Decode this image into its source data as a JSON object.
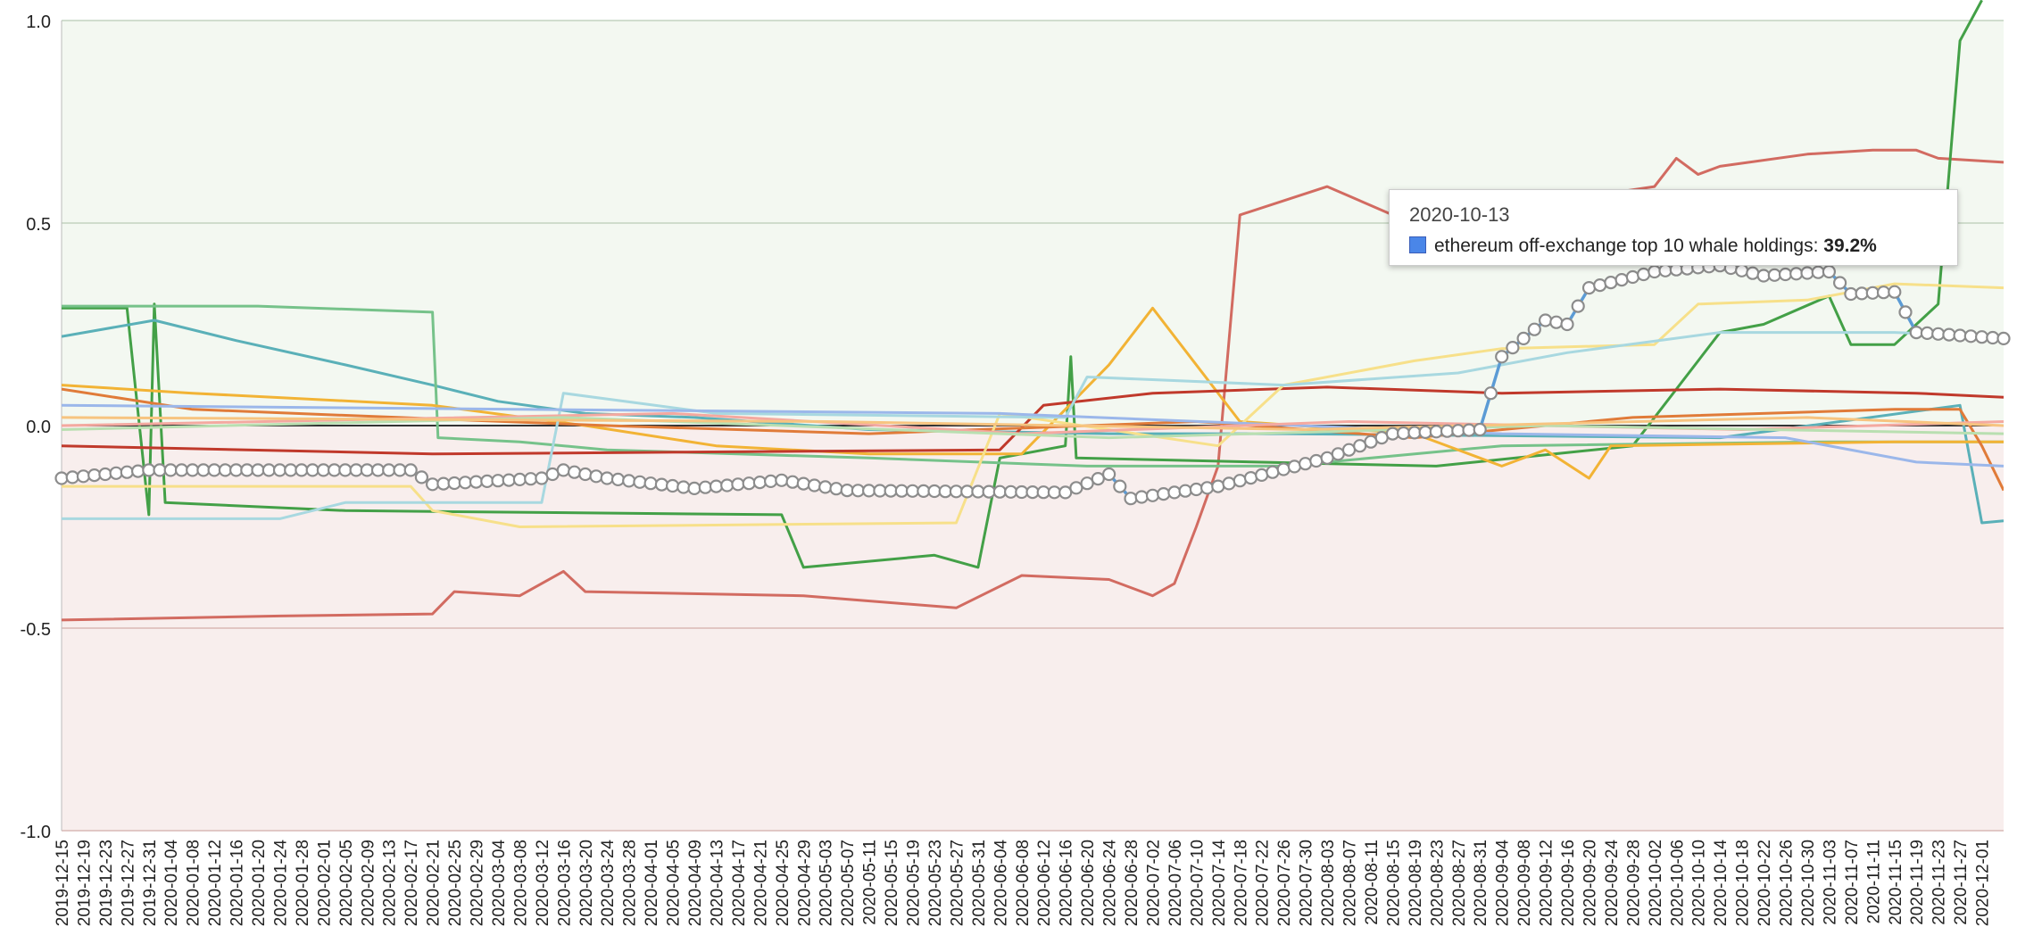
{
  "chart_data": {
    "type": "line",
    "title": "",
    "xlabel": "",
    "ylabel": "",
    "ylim": [
      -1.0,
      1.0
    ],
    "y_ticks": [
      "1.0",
      "0.5",
      "0.0",
      "-0.5",
      "-1.0"
    ],
    "grid": true,
    "background_bands": [
      {
        "range": [
          0,
          1.0
        ],
        "color": "#f3f8f1"
      },
      {
        "range": [
          -1.0,
          0
        ],
        "color": "#f8eeed"
      }
    ],
    "x_start": "2019-12-15",
    "x_end": "2020-12-05",
    "x_tick_labels": [
      "2019-12-15",
      "2019-12-19",
      "2019-12-23",
      "2019-12-27",
      "2019-12-31",
      "2020-01-04",
      "2020-01-08",
      "2020-01-12",
      "2020-01-16",
      "2020-01-20",
      "2020-01-24",
      "2020-01-28",
      "2020-02-01",
      "2020-02-05",
      "2020-02-09",
      "2020-02-13",
      "2020-02-17",
      "2020-02-21",
      "2020-02-25",
      "2020-02-29",
      "2020-03-04",
      "2020-03-08",
      "2020-03-12",
      "2020-03-16",
      "2020-03-20",
      "2020-03-24",
      "2020-03-28",
      "2020-04-01",
      "2020-04-05",
      "2020-04-09",
      "2020-04-13",
      "2020-04-17",
      "2020-04-21",
      "2020-04-25",
      "2020-04-29",
      "2020-05-03",
      "2020-05-07",
      "2020-05-11",
      "2020-05-15",
      "2020-05-19",
      "2020-05-23",
      "2020-05-27",
      "2020-05-31",
      "2020-06-04",
      "2020-06-08",
      "2020-06-12",
      "2020-06-16",
      "2020-06-20",
      "2020-06-24",
      "2020-06-28",
      "2020-07-02",
      "2020-07-06",
      "2020-07-10",
      "2020-07-14",
      "2020-07-18",
      "2020-07-22",
      "2020-07-26",
      "2020-07-30",
      "2020-08-03",
      "2020-08-07",
      "2020-08-11",
      "2020-08-15",
      "2020-08-19",
      "2020-08-23",
      "2020-08-27",
      "2020-08-31",
      "2020-09-04",
      "2020-09-08",
      "2020-09-12",
      "2020-09-16",
      "2020-09-20",
      "2020-09-24",
      "2020-09-28",
      "2020-10-02",
      "2020-10-06",
      "2020-10-10",
      "2020-10-14",
      "2020-10-18",
      "2020-10-22",
      "2020-10-26",
      "2020-10-30",
      "2020-11-03",
      "2020-11-07",
      "2020-11-11",
      "2020-11-15",
      "2020-11-19",
      "2020-11-23",
      "2020-11-27",
      "2020-12-01"
    ],
    "series": [
      {
        "color": "#5b9bd5",
        "width": 3.5,
        "markers": true,
        "highlight": true,
        "points": [
          [
            "2019-12-15",
            -0.13
          ],
          [
            "2019-12-31",
            -0.11
          ],
          [
            "2020-02-17",
            -0.11
          ],
          [
            "2020-02-21",
            -0.145
          ],
          [
            "2020-03-12",
            -0.13
          ],
          [
            "2020-03-16",
            -0.11
          ],
          [
            "2020-03-24",
            -0.13
          ],
          [
            "2020-04-09",
            -0.155
          ],
          [
            "2020-04-25",
            -0.135
          ],
          [
            "2020-05-07",
            -0.16
          ],
          [
            "2020-06-16",
            -0.165
          ],
          [
            "2020-06-24",
            -0.12
          ],
          [
            "2020-06-28",
            -0.18
          ],
          [
            "2020-07-14",
            -0.15
          ],
          [
            "2020-08-03",
            -0.08
          ],
          [
            "2020-08-15",
            -0.02
          ],
          [
            "2020-08-31",
            -0.01
          ],
          [
            "2020-09-04",
            0.17
          ],
          [
            "2020-09-12",
            0.26
          ],
          [
            "2020-09-16",
            0.25
          ],
          [
            "2020-09-20",
            0.34
          ],
          [
            "2020-10-02",
            0.38
          ],
          [
            "2020-10-14",
            0.395
          ],
          [
            "2020-10-22",
            0.37
          ],
          [
            "2020-11-03",
            0.38
          ],
          [
            "2020-11-07",
            0.325
          ],
          [
            "2020-11-15",
            0.33
          ],
          [
            "2020-11-19",
            0.23
          ],
          [
            "2020-12-05",
            0.215
          ]
        ]
      },
      {
        "color": "#d26b61",
        "width": 3,
        "points": [
          [
            "2019-12-15",
            -0.48
          ],
          [
            "2020-01-24",
            -0.47
          ],
          [
            "2020-02-21",
            -0.465
          ],
          [
            "2020-02-25",
            -0.41
          ],
          [
            "2020-03-08",
            -0.42
          ],
          [
            "2020-03-16",
            -0.36
          ],
          [
            "2020-03-20",
            -0.41
          ],
          [
            "2020-04-29",
            -0.42
          ],
          [
            "2020-05-27",
            -0.45
          ],
          [
            "2020-06-08",
            -0.37
          ],
          [
            "2020-06-24",
            -0.38
          ],
          [
            "2020-07-02",
            -0.42
          ],
          [
            "2020-07-06",
            -0.39
          ],
          [
            "2020-07-10",
            -0.25
          ],
          [
            "2020-07-14",
            -0.1
          ],
          [
            "2020-07-18",
            0.52
          ],
          [
            "2020-08-03",
            0.59
          ],
          [
            "2020-08-15",
            0.52
          ],
          [
            "2020-09-12",
            0.55
          ],
          [
            "2020-10-02",
            0.59
          ],
          [
            "2020-10-06",
            0.66
          ],
          [
            "2020-10-10",
            0.62
          ],
          [
            "2020-10-14",
            0.64
          ],
          [
            "2020-10-30",
            0.67
          ],
          [
            "2020-11-11",
            0.68
          ],
          [
            "2020-11-19",
            0.68
          ],
          [
            "2020-11-23",
            0.66
          ],
          [
            "2020-12-05",
            0.65
          ]
        ]
      },
      {
        "color": "#43a047",
        "width": 3,
        "points": [
          [
            "2019-12-15",
            0.29
          ],
          [
            "2019-12-27",
            0.29
          ],
          [
            "2019-12-31",
            -0.22
          ],
          [
            "2020-01-01",
            0.3
          ],
          [
            "2020-01-03",
            -0.19
          ],
          [
            "2020-02-05",
            -0.21
          ],
          [
            "2020-04-25",
            -0.22
          ],
          [
            "2020-04-29",
            -0.35
          ],
          [
            "2020-05-23",
            -0.32
          ],
          [
            "2020-05-31",
            -0.35
          ],
          [
            "2020-06-04",
            -0.08
          ],
          [
            "2020-06-16",
            -0.05
          ],
          [
            "2020-06-17",
            0.17
          ],
          [
            "2020-06-18",
            -0.08
          ],
          [
            "2020-08-23",
            -0.1
          ],
          [
            "2020-09-28",
            -0.05
          ],
          [
            "2020-10-14",
            0.23
          ],
          [
            "2020-10-22",
            0.25
          ],
          [
            "2020-11-03",
            0.32
          ],
          [
            "2020-11-07",
            0.2
          ],
          [
            "2020-11-15",
            0.2
          ],
          [
            "2020-11-23",
            0.3
          ],
          [
            "2020-11-27",
            0.95
          ],
          [
            "2020-12-01",
            1.05
          ]
        ]
      },
      {
        "color": "#5ab0b8",
        "width": 3,
        "points": [
          [
            "2019-12-15",
            0.22
          ],
          [
            "2020-01-01",
            0.26
          ],
          [
            "2020-01-16",
            0.21
          ],
          [
            "2020-02-05",
            0.15
          ],
          [
            "2020-02-21",
            0.1
          ],
          [
            "2020-03-04",
            0.06
          ],
          [
            "2020-03-20",
            0.03
          ],
          [
            "2020-04-09",
            0.02
          ],
          [
            "2020-05-11",
            -0.01
          ],
          [
            "2020-06-24",
            -0.02
          ],
          [
            "2020-07-26",
            -0.02
          ],
          [
            "2020-10-14",
            -0.03
          ],
          [
            "2020-11-27",
            0.05
          ],
          [
            "2020-12-01",
            -0.24
          ],
          [
            "2020-12-05",
            -0.235
          ]
        ]
      },
      {
        "color": "#76c28a",
        "width": 3,
        "points": [
          [
            "2019-12-15",
            0.295
          ],
          [
            "2020-01-20",
            0.295
          ],
          [
            "2020-02-21",
            0.28
          ],
          [
            "2020-02-22",
            -0.03
          ],
          [
            "2020-03-08",
            -0.04
          ],
          [
            "2020-03-24",
            -0.06
          ],
          [
            "2020-05-11",
            -0.08
          ],
          [
            "2020-06-20",
            -0.1
          ],
          [
            "2020-07-26",
            -0.1
          ],
          [
            "2020-09-04",
            -0.05
          ],
          [
            "2020-11-03",
            -0.04
          ],
          [
            "2020-12-05",
            -0.04
          ]
        ]
      },
      {
        "color": "#f2b335",
        "width": 3,
        "points": [
          [
            "2019-12-15",
            0.1
          ],
          [
            "2020-01-08",
            0.08
          ],
          [
            "2020-02-21",
            0.05
          ],
          [
            "2020-03-20",
            0.0
          ],
          [
            "2020-04-13",
            -0.05
          ],
          [
            "2020-05-11",
            -0.07
          ],
          [
            "2020-06-08",
            -0.07
          ],
          [
            "2020-06-24",
            0.15
          ],
          [
            "2020-07-02",
            0.29
          ],
          [
            "2020-07-10",
            0.15
          ],
          [
            "2020-07-18",
            0.01
          ],
          [
            "2020-08-19",
            -0.02
          ],
          [
            "2020-09-04",
            -0.1
          ],
          [
            "2020-09-12",
            -0.06
          ],
          [
            "2020-09-20",
            -0.13
          ],
          [
            "2020-09-24",
            -0.05
          ],
          [
            "2020-11-15",
            -0.04
          ],
          [
            "2020-12-05",
            -0.04
          ]
        ]
      },
      {
        "color": "#c0392b",
        "width": 3,
        "points": [
          [
            "2019-12-15",
            -0.05
          ],
          [
            "2020-02-21",
            -0.07
          ],
          [
            "2020-06-04",
            -0.06
          ],
          [
            "2020-06-12",
            0.05
          ],
          [
            "2020-07-02",
            0.08
          ],
          [
            "2020-08-03",
            0.095
          ],
          [
            "2020-09-04",
            0.08
          ],
          [
            "2020-10-14",
            0.09
          ],
          [
            "2020-11-19",
            0.08
          ],
          [
            "2020-12-05",
            0.07
          ]
        ]
      },
      {
        "color": "#e07b39",
        "width": 3,
        "points": [
          [
            "2019-12-15",
            0.09
          ],
          [
            "2020-01-08",
            0.04
          ],
          [
            "2020-03-24",
            0.0
          ],
          [
            "2020-05-11",
            -0.02
          ],
          [
            "2020-07-10",
            0.01
          ],
          [
            "2020-08-19",
            -0.03
          ],
          [
            "2020-09-28",
            0.02
          ],
          [
            "2020-11-15",
            0.04
          ],
          [
            "2020-11-27",
            0.04
          ],
          [
            "2020-12-01",
            -0.05
          ],
          [
            "2020-12-05",
            -0.16
          ]
        ]
      },
      {
        "color": "#f7e08a",
        "width": 3,
        "points": [
          [
            "2019-12-15",
            -0.15
          ],
          [
            "2020-02-17",
            -0.15
          ],
          [
            "2020-02-21",
            -0.21
          ],
          [
            "2020-03-08",
            -0.25
          ],
          [
            "2020-05-27",
            -0.24
          ],
          [
            "2020-06-04",
            0.03
          ],
          [
            "2020-07-14",
            -0.05
          ],
          [
            "2020-07-26",
            0.1
          ],
          [
            "2020-08-19",
            0.16
          ],
          [
            "2020-09-04",
            0.19
          ],
          [
            "2020-10-02",
            0.2
          ],
          [
            "2020-10-10",
            0.3
          ],
          [
            "2020-10-30",
            0.31
          ],
          [
            "2020-11-15",
            0.35
          ],
          [
            "2020-12-05",
            0.34
          ]
        ]
      },
      {
        "color": "#a8d8e0",
        "width": 3,
        "points": [
          [
            "2019-12-15",
            -0.23
          ],
          [
            "2020-01-24",
            -0.23
          ],
          [
            "2020-02-05",
            -0.19
          ],
          [
            "2020-03-12",
            -0.19
          ],
          [
            "2020-03-16",
            0.08
          ],
          [
            "2020-04-13",
            0.03
          ],
          [
            "2020-06-16",
            0.02
          ],
          [
            "2020-06-20",
            0.12
          ],
          [
            "2020-07-26",
            0.1
          ],
          [
            "2020-08-27",
            0.13
          ],
          [
            "2020-09-16",
            0.18
          ],
          [
            "2020-10-14",
            0.23
          ],
          [
            "2020-11-15",
            0.23
          ],
          [
            "2020-12-05",
            0.22
          ]
        ]
      },
      {
        "color": "#9bb7ea",
        "width": 3,
        "points": [
          [
            "2019-12-15",
            0.05
          ],
          [
            "2020-06-04",
            0.03
          ],
          [
            "2020-09-04",
            -0.02
          ],
          [
            "2020-10-26",
            -0.03
          ],
          [
            "2020-11-19",
            -0.09
          ],
          [
            "2020-12-05",
            -0.1
          ]
        ]
      },
      {
        "color": "#f4a9a0",
        "width": 3,
        "points": [
          [
            "2019-12-15",
            0.0
          ],
          [
            "2020-04-05",
            0.03
          ],
          [
            "2020-06-08",
            -0.02
          ],
          [
            "2020-08-07",
            0.01
          ],
          [
            "2020-10-18",
            -0.01
          ],
          [
            "2020-12-05",
            0.01
          ]
        ]
      },
      {
        "color": "#b9dfb1",
        "width": 3,
        "points": [
          [
            "2019-12-15",
            -0.01
          ],
          [
            "2020-03-16",
            0.02
          ],
          [
            "2020-06-24",
            -0.03
          ],
          [
            "2020-09-12",
            0.0
          ],
          [
            "2020-12-05",
            -0.02
          ]
        ]
      },
      {
        "color": "#f7c480",
        "width": 3,
        "points": [
          [
            "2019-12-15",
            0.02
          ],
          [
            "2020-05-03",
            0.01
          ],
          [
            "2020-07-30",
            -0.01
          ],
          [
            "2020-10-30",
            0.02
          ],
          [
            "2020-12-05",
            0.0
          ]
        ]
      }
    ],
    "tooltip": {
      "date": "2020-10-13",
      "label": "ethereum off-exchange top 10 whale holdings:",
      "value": "39.2%",
      "swatch_color": "#4a86e8"
    }
  }
}
